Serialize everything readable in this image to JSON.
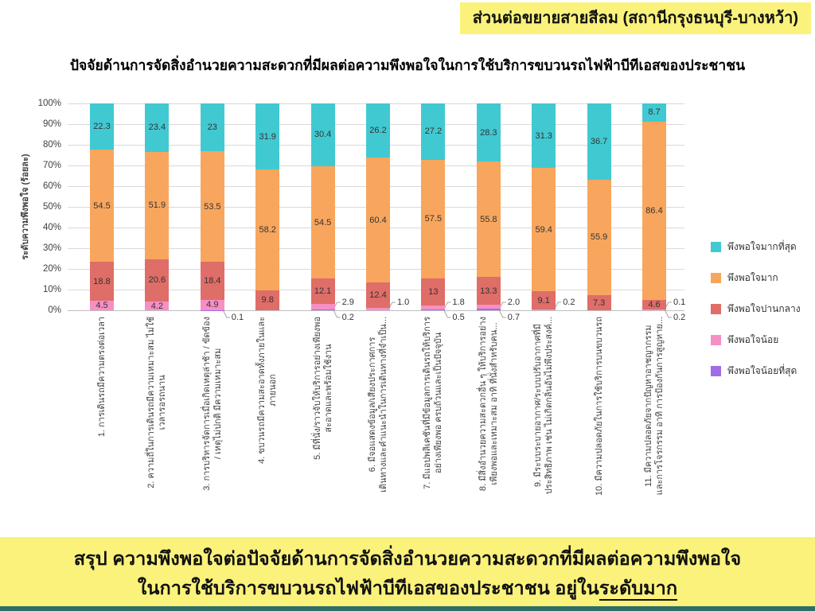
{
  "badge": {
    "text": "ส่วนต่อขยายสายสีลม (สถานีกรุงธนบุรี-บางหว้า)"
  },
  "title": "ปัจจัยด้านการจัดสิ่งอำนวยความสะดวกที่มีผลต่อความพึงพอใจในการใช้บริการขบวนรถไฟฟ้าบีทีเอสของประชาชน",
  "chart_data": {
    "type": "bar",
    "stacked": true,
    "orientation": "vertical",
    "title": "",
    "ylabel": "ระดับความพึงพอใจ (ร้อยละ)",
    "ylim": [
      0,
      100
    ],
    "yticks": [
      "0%",
      "10%",
      "20%",
      "30%",
      "40%",
      "50%",
      "60%",
      "70%",
      "80%",
      "90%",
      "100%"
    ],
    "grid": true,
    "legend_position": "right",
    "categories": [
      "1. การเดินรถมีความตรงต่อเวลา",
      "2. ความถี่ในการเดินรถมีความเหมาะสม ไม่ใช้\nเวลารอรถนาน",
      "3. การบริหารจัดการเมื่อเกิดเหตุล่าช้า / ขัดข้อง\n/ เหตุไม่ปกติ มีความเหมาะสม",
      "4. ขบวนรถมีความสะอาดทั้งภายในและ\nภายนอก",
      "5. มีที่นั่ง/ราวจับให้บริการอย่างเพียงพอ\nสะอาดและพร้อมใช้งาน",
      "6. มีจอแสดงข้อมูล/เสียงประกาศการ\nเดินทางและคำแนะนำในการเดินทางที่จำเป็น...",
      "7. มีแอปพลิเคชันที่มีข้อมูลการเดินรถให้บริการ\nอย่างเพียงพอ ครบถ้วนและเป็นปัจจุบัน",
      "8. มีสิ่งอำนวยความสะดวกอื่น ๆ ให้บริการอย่าง\nเพียงพอและเหมาะสม อาทิ ที่นั่งสำหรับคน...",
      "9. มีระบบระบายอากาศ/ระบบปรับอากาศที่มี\nประสิทธิภาพ เช่น ไม่เกิดกลิ่นอันไม่พึงประสงค์...",
      "10. มีความปลอดภัยในการใช้บริการบนขบวนรถ",
      "11. มีความปลอดภัยจากปัญหาอาชญากรรม\nและการโจรกรรม อาทิ การป้องกันการสูญหาย..."
    ],
    "series": [
      {
        "name": "พึงพอใจมากที่สุด",
        "color": "#41c9d2",
        "values": [
          "22.3",
          "23.4",
          "23",
          "31.9",
          "30.4",
          "26.2",
          "27.2",
          "28.3",
          "31.3",
          "36.7",
          "8.7"
        ]
      },
      {
        "name": "พึงพอใจมาก",
        "color": "#f8a65d",
        "values": [
          "54.5",
          "51.9",
          "53.5",
          "58.2",
          "54.5",
          "60.4",
          "57.5",
          "55.8",
          "59.4",
          "55.9",
          "86.4"
        ]
      },
      {
        "name": "พึงพอใจปานกลาง",
        "color": "#df6d68",
        "values": [
          "18.8",
          "20.6",
          "18.4",
          "9.8",
          "12.1",
          "12.4",
          "13",
          "13.3",
          "9.1",
          "7.3",
          "4.6"
        ]
      },
      {
        "name": "พึงพอใจน้อย",
        "color": "#f78fc5",
        "values": [
          "4.5",
          "4.2",
          "4.9",
          "",
          "2.9",
          "1.0",
          "1.8",
          "2.0",
          "0.2",
          "",
          "0.1"
        ]
      },
      {
        "name": "พึงพอใจน้อยที่สุด",
        "color": "#a26be8",
        "values": [
          "",
          "",
          "0.1",
          "",
          "0.2",
          "",
          "0.5",
          "0.7",
          "",
          "",
          "0.2"
        ]
      }
    ],
    "stack_order_bottom_to_top": [
      "พึงพอใจน้อยที่สุด",
      "พึงพอใจน้อย",
      "พึงพอใจปานกลาง",
      "พึงพอใจมาก",
      "พึงพอใจมากที่สุด"
    ]
  },
  "footer": {
    "line1": "สรุป ความพึงพอใจต่อปัจจัยด้านการจัดสิ่งอำนวยความสะดวกที่มีผลต่อความพึงพอใจ",
    "line2_prefix": "ในการใช้บริการขบวนรถไฟฟ้าบีทีเอสของประชาชน อยู่ใน",
    "line2_underlined": "ระดับมาก"
  },
  "colors": {
    "highlight_yellow": "#fbf27c",
    "bottom_strip": "#2e6e68",
    "gridline": "#d9d9d9",
    "axis_line": "#bfbfbf",
    "leader_line": "#a6a6a6",
    "text": "#3f3f3f"
  }
}
